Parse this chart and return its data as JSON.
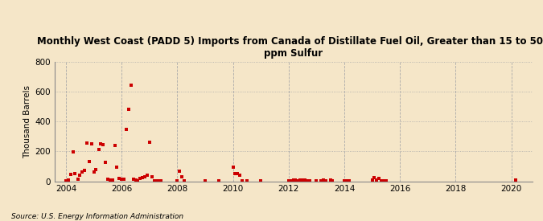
{
  "title_line1": "Monthly West Coast (PADD 5) Imports from Canada of Distillate Fuel Oil, Greater than 15 to 500",
  "title_line2": "ppm Sulfur",
  "ylabel": "Thousand Barrels",
  "source": "Source: U.S. Energy Information Administration",
  "background_color": "#f5e6c8",
  "marker_color": "#cc0000",
  "xlim_start": 2003.58,
  "xlim_end": 2020.75,
  "ylim": [
    0,
    800
  ],
  "yticks": [
    0,
    200,
    400,
    600,
    800
  ],
  "xticks": [
    2004,
    2006,
    2008,
    2010,
    2012,
    2014,
    2016,
    2018,
    2020
  ],
  "data_points": [
    [
      2004.0,
      5
    ],
    [
      2004.08,
      10
    ],
    [
      2004.17,
      45
    ],
    [
      2004.25,
      195
    ],
    [
      2004.33,
      50
    ],
    [
      2004.42,
      15
    ],
    [
      2004.5,
      40
    ],
    [
      2004.58,
      60
    ],
    [
      2004.67,
      75
    ],
    [
      2004.75,
      255
    ],
    [
      2004.83,
      130
    ],
    [
      2004.92,
      250
    ],
    [
      2005.0,
      60
    ],
    [
      2005.08,
      80
    ],
    [
      2005.17,
      215
    ],
    [
      2005.25,
      250
    ],
    [
      2005.33,
      245
    ],
    [
      2005.42,
      125
    ],
    [
      2005.5,
      15
    ],
    [
      2005.58,
      10
    ],
    [
      2005.67,
      10
    ],
    [
      2005.75,
      240
    ],
    [
      2005.83,
      95
    ],
    [
      2005.92,
      20
    ],
    [
      2006.0,
      15
    ],
    [
      2006.08,
      15
    ],
    [
      2006.17,
      350
    ],
    [
      2006.25,
      480
    ],
    [
      2006.33,
      645
    ],
    [
      2006.42,
      15
    ],
    [
      2006.5,
      10
    ],
    [
      2006.58,
      5
    ],
    [
      2006.67,
      20
    ],
    [
      2006.75,
      25
    ],
    [
      2006.83,
      30
    ],
    [
      2006.92,
      40
    ],
    [
      2007.0,
      260
    ],
    [
      2007.08,
      30
    ],
    [
      2007.17,
      5
    ],
    [
      2007.25,
      5
    ],
    [
      2007.33,
      5
    ],
    [
      2007.42,
      5
    ],
    [
      2008.0,
      5
    ],
    [
      2008.08,
      65
    ],
    [
      2008.17,
      30
    ],
    [
      2008.25,
      5
    ],
    [
      2009.0,
      5
    ],
    [
      2009.5,
      5
    ],
    [
      2010.0,
      95
    ],
    [
      2010.08,
      50
    ],
    [
      2010.17,
      50
    ],
    [
      2010.25,
      40
    ],
    [
      2010.33,
      5
    ],
    [
      2010.5,
      5
    ],
    [
      2011.0,
      5
    ],
    [
      2012.0,
      5
    ],
    [
      2012.08,
      5
    ],
    [
      2012.17,
      10
    ],
    [
      2012.25,
      10
    ],
    [
      2012.33,
      5
    ],
    [
      2012.42,
      10
    ],
    [
      2012.5,
      10
    ],
    [
      2012.58,
      10
    ],
    [
      2012.67,
      5
    ],
    [
      2012.75,
      5
    ],
    [
      2013.0,
      5
    ],
    [
      2013.17,
      5
    ],
    [
      2013.25,
      10
    ],
    [
      2013.33,
      5
    ],
    [
      2013.5,
      10
    ],
    [
      2013.58,
      5
    ],
    [
      2014.0,
      5
    ],
    [
      2014.08,
      5
    ],
    [
      2014.17,
      5
    ],
    [
      2015.0,
      10
    ],
    [
      2015.08,
      25
    ],
    [
      2015.17,
      10
    ],
    [
      2015.25,
      20
    ],
    [
      2015.33,
      5
    ],
    [
      2015.42,
      5
    ],
    [
      2015.5,
      5
    ],
    [
      2020.17,
      10
    ]
  ]
}
